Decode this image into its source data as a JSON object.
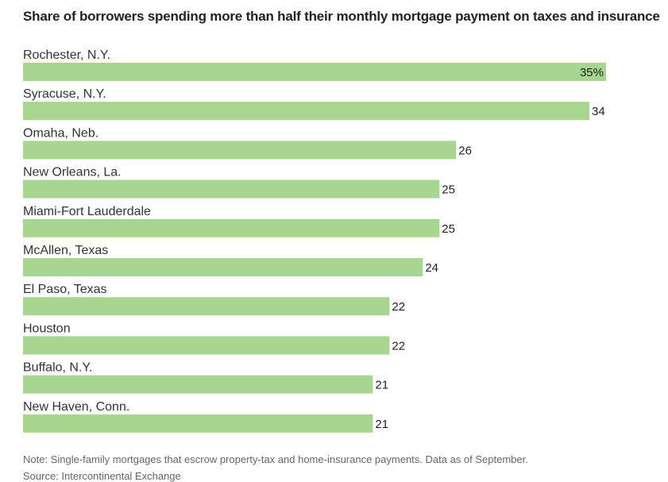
{
  "title": "Share of borrowers spending more than half their monthly mortgage payment on taxes and insurance",
  "note": "Note: Single-family mortgages that escrow property-tax and home-insurance payments. Data as of September.",
  "source": "Source: Intercontinental Exchange",
  "colors": {
    "bar": "#a8d58f",
    "text": "#222222",
    "muted": "#666666"
  },
  "chart_data": {
    "type": "bar",
    "orientation": "horizontal",
    "categories": [
      "Rochester, N.Y.",
      "Syracuse, N.Y.",
      "Omaha, Neb.",
      "New Orleans, La.",
      "Miami-Fort Lauderdale",
      "McAllen, Texas",
      "El Paso, Texas",
      "Houston",
      "Buffalo, N.Y.",
      "New Haven, Conn."
    ],
    "values": [
      35,
      34,
      26,
      25,
      25,
      24,
      22,
      22,
      21,
      21
    ],
    "value_labels": [
      "35%",
      "34",
      "26",
      "25",
      "25",
      "24",
      "22",
      "22",
      "21",
      "21"
    ],
    "unit": "%",
    "xlim": [
      0,
      35
    ],
    "grid": false,
    "legend": "none"
  }
}
